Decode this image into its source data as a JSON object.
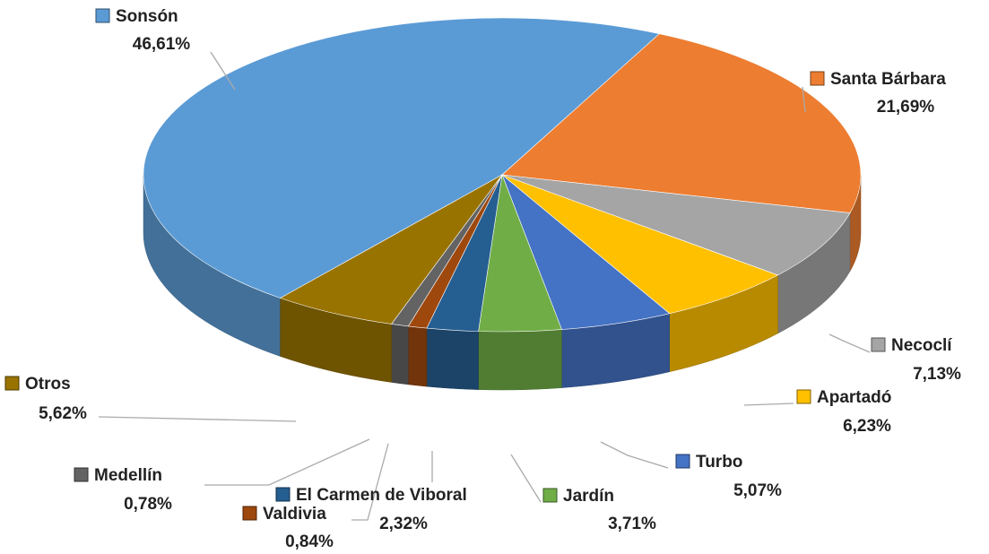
{
  "chart_data": {
    "type": "pie3d",
    "categories": [
      "Sonsón",
      "Santa Bárbara",
      "Necoclí",
      "Apartadó",
      "Turbo",
      "Jardín",
      "El Carmen de Viboral",
      "Valdivia",
      "Medellín",
      "Otros"
    ],
    "values": [
      46.61,
      21.69,
      7.13,
      6.23,
      5.07,
      3.71,
      2.32,
      0.84,
      0.78,
      5.62
    ],
    "value_labels": [
      "46,61%",
      "21,69%",
      "7,13%",
      "6,23%",
      "5,07%",
      "3,71%",
      "2,32%",
      "0,84%",
      "0,78%",
      "5,62%"
    ],
    "colors": [
      "#5b9bd5",
      "#ed7d31",
      "#a5a5a5",
      "#ffc000",
      "#4472c4",
      "#70ad47",
      "#255e91",
      "#9e480e",
      "#636363",
      "#997300"
    ]
  }
}
